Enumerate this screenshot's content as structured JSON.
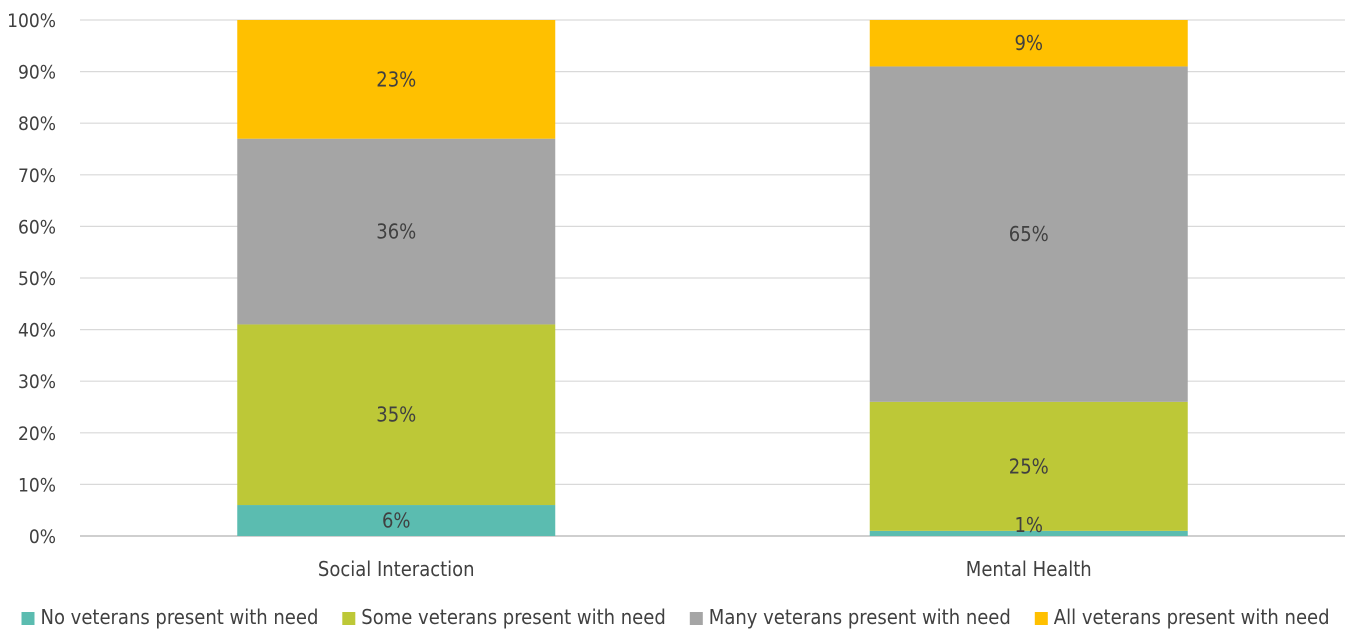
{
  "chart_data": {
    "type": "bar",
    "stacked": true,
    "categories": [
      "Social Interaction",
      "Mental Health"
    ],
    "series": [
      {
        "name": "No veterans present with need",
        "values": [
          6,
          1
        ],
        "color": "#5BBCB0"
      },
      {
        "name": "Some veterans present with need",
        "values": [
          35,
          25
        ],
        "color": "#BDC837"
      },
      {
        "name": "Many veterans present with need",
        "values": [
          36,
          65
        ],
        "color": "#A5A5A5"
      },
      {
        "name": "All veterans present with need",
        "values": [
          23,
          9
        ],
        "color": "#FFC000"
      }
    ],
    "data_labels": [
      [
        "6%",
        "1%"
      ],
      [
        "35%",
        "25%"
      ],
      [
        "36%",
        "65%"
      ],
      [
        "23%",
        "9%"
      ]
    ],
    "yticks": [
      "0%",
      "10%",
      "20%",
      "30%",
      "40%",
      "50%",
      "60%",
      "70%",
      "80%",
      "90%",
      "100%"
    ],
    "ylim": [
      0,
      100
    ],
    "grid": true,
    "legend_position": "bottom",
    "title": "",
    "xlabel": "",
    "ylabel": ""
  }
}
